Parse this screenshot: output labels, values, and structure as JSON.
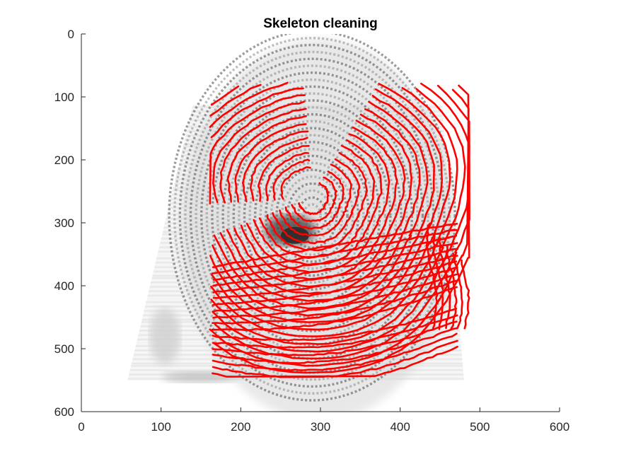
{
  "chart_data": {
    "type": "scatter",
    "title": "Skeleton cleaning",
    "xlabel": "",
    "ylabel": "",
    "xlim": [
      0,
      600
    ],
    "ylim": [
      0,
      600
    ],
    "y_reversed": true,
    "x_ticks": [
      0,
      100,
      200,
      300,
      400,
      500,
      600
    ],
    "y_ticks": [
      0,
      100,
      200,
      300,
      400,
      500,
      600
    ],
    "grid": false,
    "background_image": "grayscale-fingerprint",
    "overlay_color": "#ff0000",
    "fingerprint_region": {
      "x_range": [
        58,
        500
      ],
      "y_range": [
        62,
        550
      ]
    },
    "ridge_center": [
      285,
      300
    ]
  }
}
